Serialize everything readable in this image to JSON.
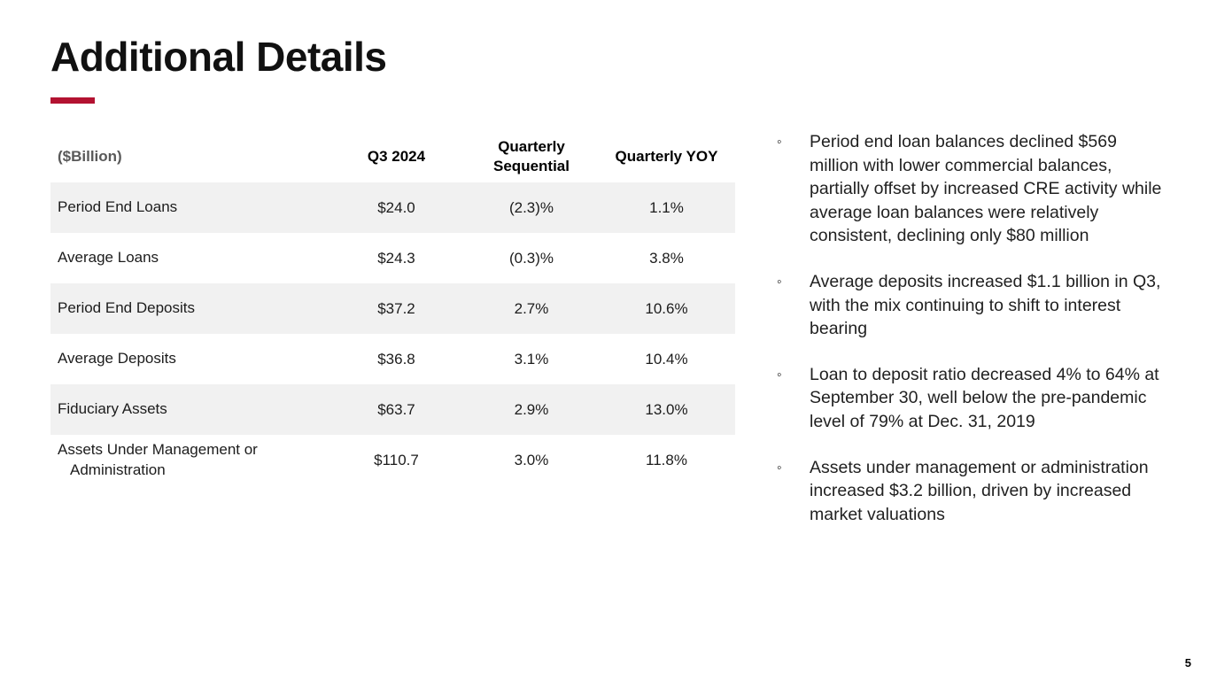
{
  "slide": {
    "title": "Additional Details",
    "page_number": "5",
    "accent_color": "#b31231",
    "stripe_color": "#f1f1f1"
  },
  "table": {
    "unit_label": "($Billion)",
    "columns": [
      "Q3 2024",
      "Quarterly Sequential",
      "Quarterly YOY"
    ],
    "rows": [
      {
        "label": "Period End Loans",
        "q3_2024": "$24.0",
        "quarterly_sequential": "(2.3)%",
        "quarterly_yoy": "1.1%"
      },
      {
        "label": "Average Loans",
        "q3_2024": "$24.3",
        "quarterly_sequential": "(0.3)%",
        "quarterly_yoy": "3.8%"
      },
      {
        "label": "Period End Deposits",
        "q3_2024": "$37.2",
        "quarterly_sequential": "2.7%",
        "quarterly_yoy": "10.6%"
      },
      {
        "label": "Average Deposits",
        "q3_2024": "$36.8",
        "quarterly_sequential": "3.1%",
        "quarterly_yoy": "10.4%"
      },
      {
        "label": "Fiduciary Assets",
        "q3_2024": "$63.7",
        "quarterly_sequential": "2.9%",
        "quarterly_yoy": "13.0%"
      },
      {
        "label": "Assets Under Management or Administration",
        "q3_2024": "$110.7",
        "quarterly_sequential": "3.0%",
        "quarterly_yoy": "11.8%"
      }
    ]
  },
  "bullets": {
    "marker_glyph": "◦",
    "items": [
      "Period end loan balances declined $569 million with lower commercial balances, partially offset by increased CRE activity while average loan balances were relatively consistent, declining only $80 million",
      "Average deposits increased $1.1 billion in Q3, with the mix continuing to shift to interest bearing",
      "Loan to deposit ratio decreased 4% to 64% at September 30, well below the pre-pandemic level of 79% at Dec. 31, 2019",
      "Assets under management or administration increased $3.2 billion, driven by increased market valuations"
    ]
  }
}
